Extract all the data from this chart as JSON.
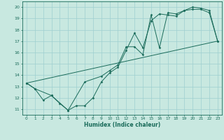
{
  "xlabel": "Humidex (Indice chaleur)",
  "xlim": [
    -0.5,
    23.5
  ],
  "ylim": [
    10.5,
    20.5
  ],
  "yticks": [
    11,
    12,
    13,
    14,
    15,
    16,
    17,
    18,
    19,
    20
  ],
  "xticks": [
    0,
    1,
    2,
    3,
    4,
    5,
    6,
    7,
    8,
    9,
    10,
    11,
    12,
    13,
    14,
    15,
    16,
    17,
    18,
    19,
    20,
    21,
    22,
    23
  ],
  "bg_color": "#c8e8e0",
  "line_color": "#1a6b5a",
  "grid_color": "#9ecfcf",
  "curve1_x": [
    0,
    1,
    2,
    3,
    4,
    5,
    6,
    7,
    8,
    9,
    10,
    11,
    12,
    13,
    14,
    15,
    16,
    17,
    18,
    19,
    20,
    21,
    22,
    23
  ],
  "curve1_y": [
    13.3,
    12.8,
    11.8,
    12.2,
    11.5,
    10.9,
    11.3,
    11.3,
    12.0,
    13.4,
    14.2,
    14.7,
    16.2,
    17.7,
    16.4,
    18.8,
    19.4,
    19.3,
    19.2,
    19.7,
    19.8,
    19.8,
    19.5,
    17.0
  ],
  "curve2_x": [
    0,
    1,
    3,
    5,
    7,
    9,
    10,
    11,
    12,
    13,
    14,
    15,
    16,
    17,
    18,
    19,
    20,
    21,
    22,
    23
  ],
  "curve2_y": [
    13.3,
    12.8,
    12.2,
    10.9,
    13.4,
    13.9,
    14.4,
    14.9,
    16.5,
    16.5,
    15.8,
    19.3,
    16.4,
    19.5,
    19.4,
    19.7,
    20.0,
    19.9,
    19.7,
    17.0
  ],
  "trend_x": [
    0,
    23
  ],
  "trend_y": [
    13.3,
    17.0
  ]
}
